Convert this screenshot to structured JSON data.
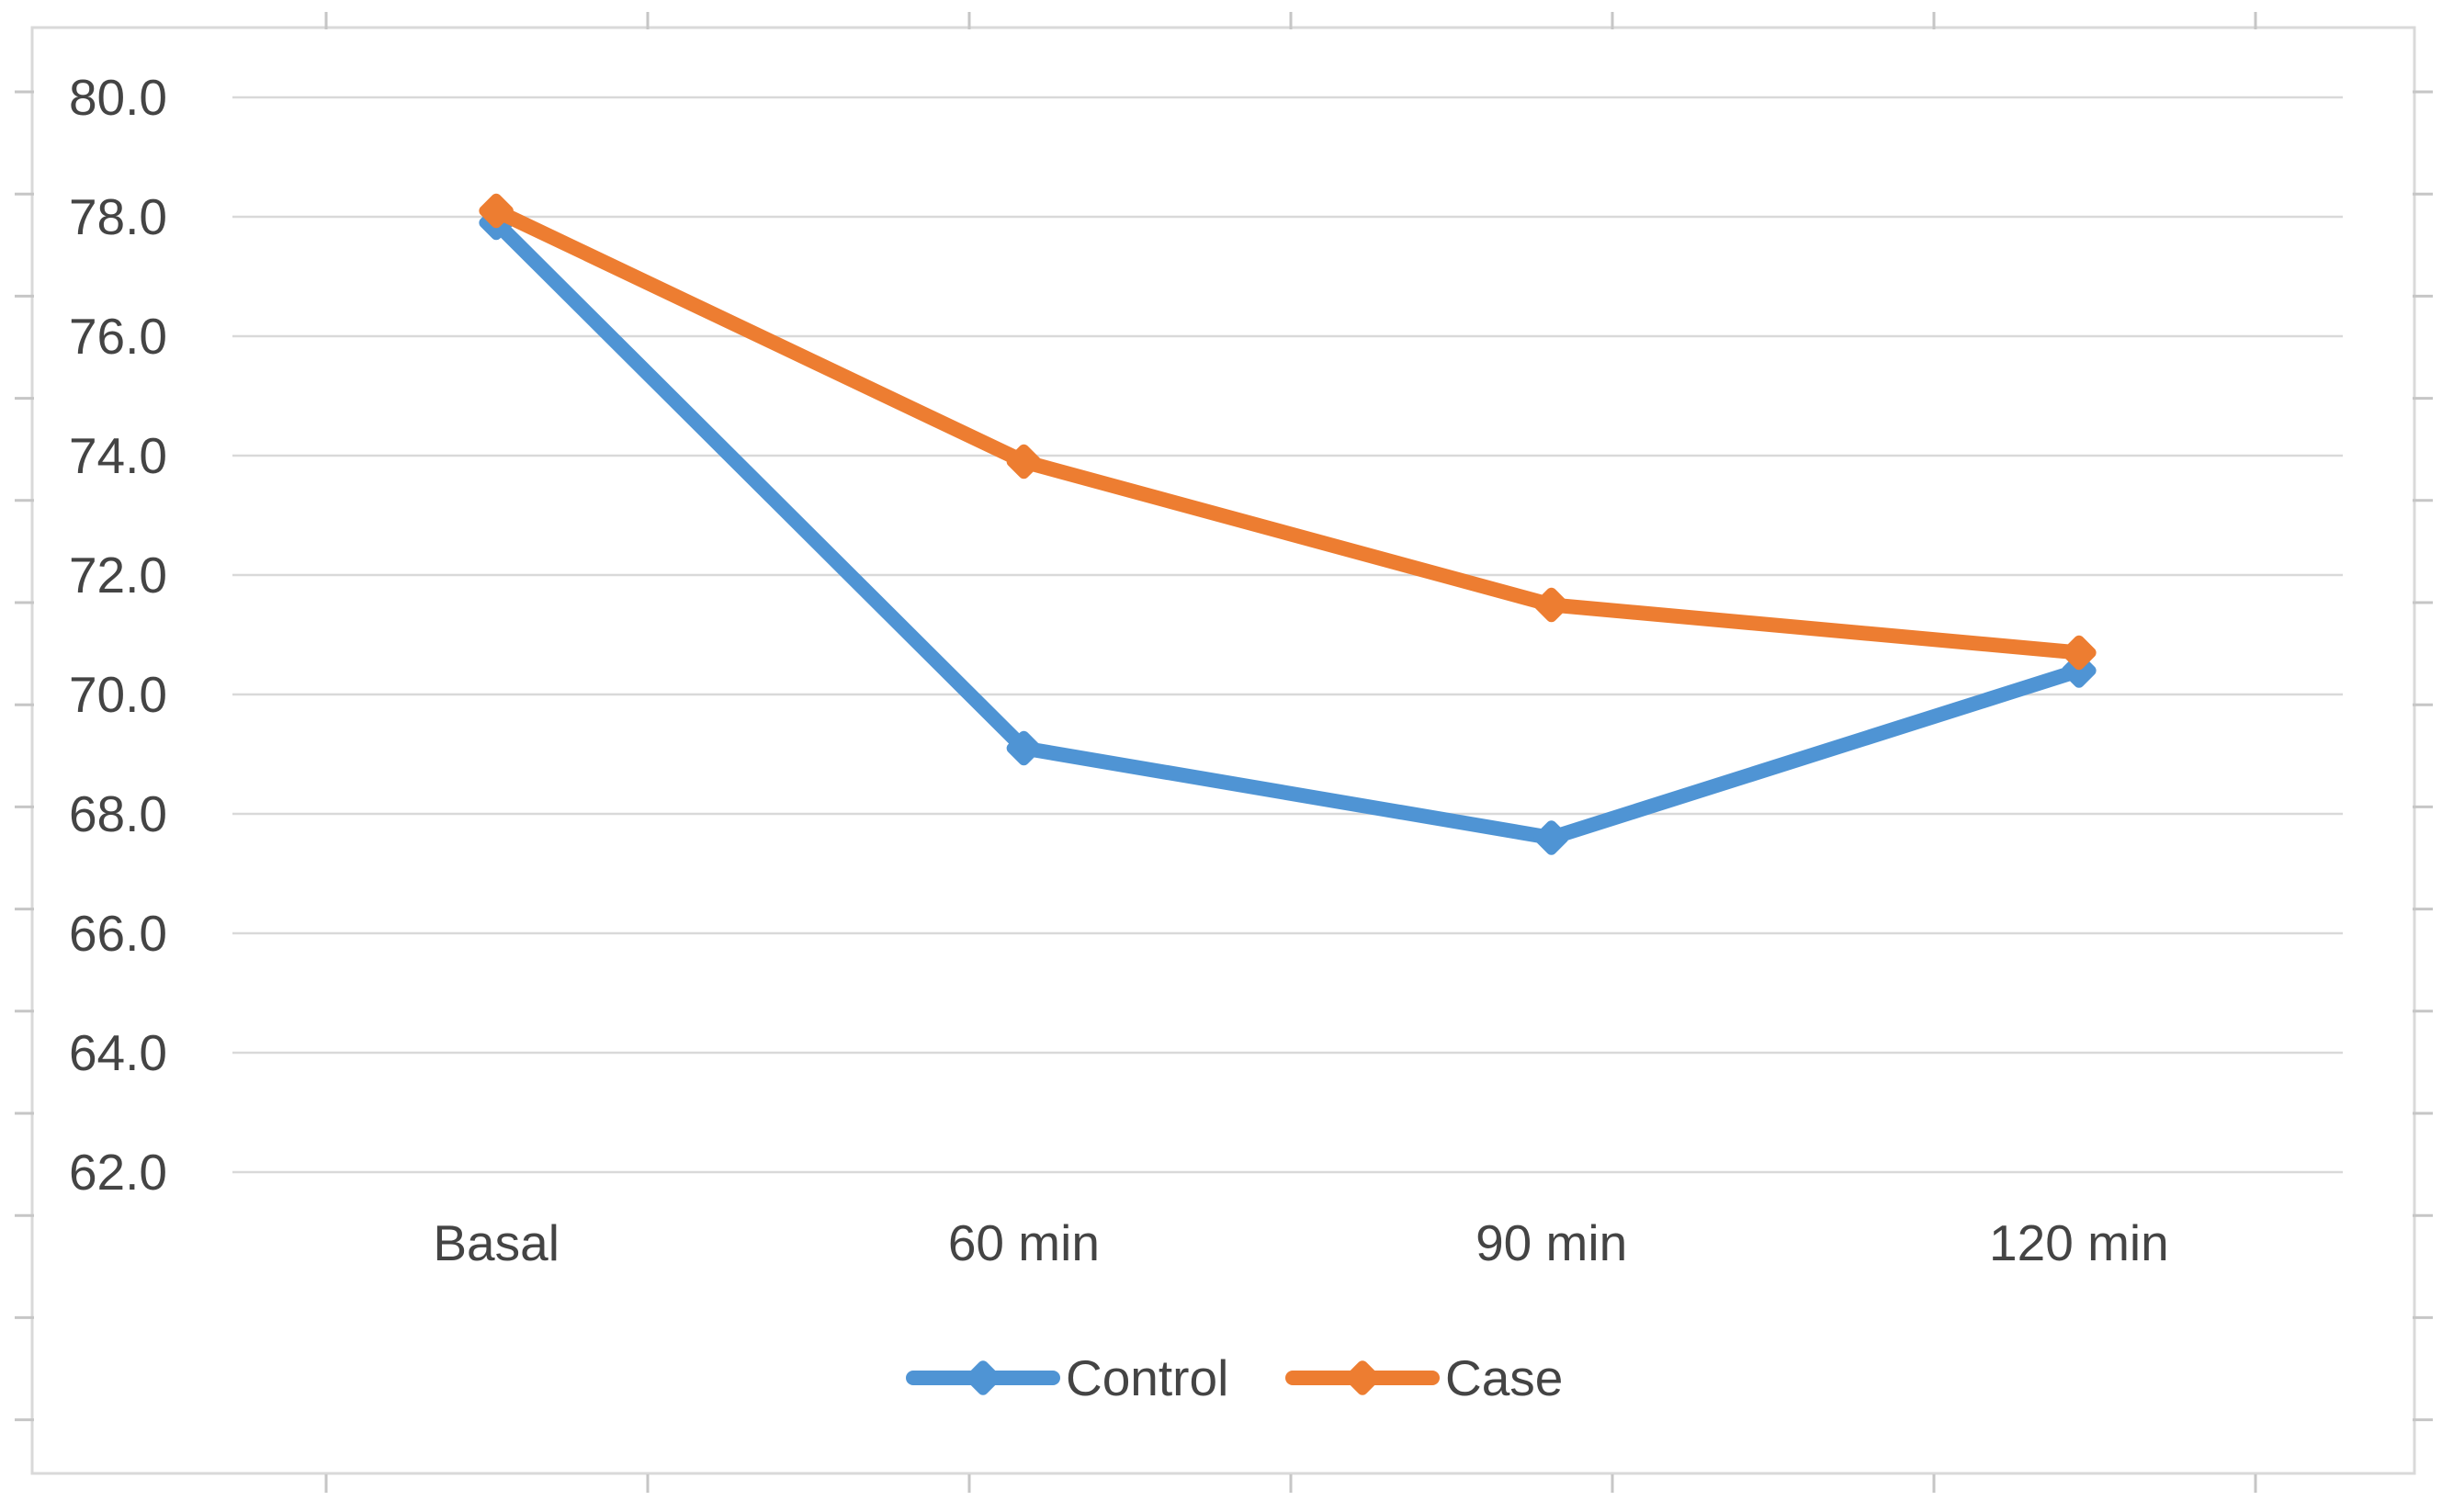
{
  "figure": {
    "description": "Excel-style line chart pasted over a worksheet; cell gridline stubs visible around the chart border",
    "title": ""
  },
  "chart_data": {
    "type": "line",
    "title": "",
    "xlabel": "",
    "ylabel": "",
    "categories": [
      "Basal",
      "60 min",
      "90 min",
      "120 min"
    ],
    "series": [
      {
        "name": "Control",
        "color": "#4F94D4",
        "values": [
          77.9,
          69.1,
          67.6,
          70.4
        ]
      },
      {
        "name": "Case",
        "color": "#ED7D31",
        "values": [
          78.1,
          73.9,
          71.5,
          70.7
        ]
      }
    ],
    "yticks": [
      80.0,
      78.0,
      76.0,
      74.0,
      72.0,
      70.0,
      68.0,
      66.0,
      64.0,
      62.0
    ],
    "ytick_labels": [
      "80.0",
      "78.0",
      "76.0",
      "74.0",
      "72.0",
      "70.0",
      "68.0",
      "66.0",
      "64.0",
      "62.0"
    ],
    "ylim": [
      61.0,
      80.6
    ],
    "grid": "horizontal",
    "marker": "diamond",
    "legend_position": "bottom-center",
    "legend": [
      "Control",
      "Case"
    ],
    "colors": {
      "gridline": "#D9D9D9",
      "chart_border": "#D9D9D9",
      "axis_text": "#444444",
      "worksheet_gridline": "#C6C6C6",
      "background": "#FFFFFF"
    }
  }
}
